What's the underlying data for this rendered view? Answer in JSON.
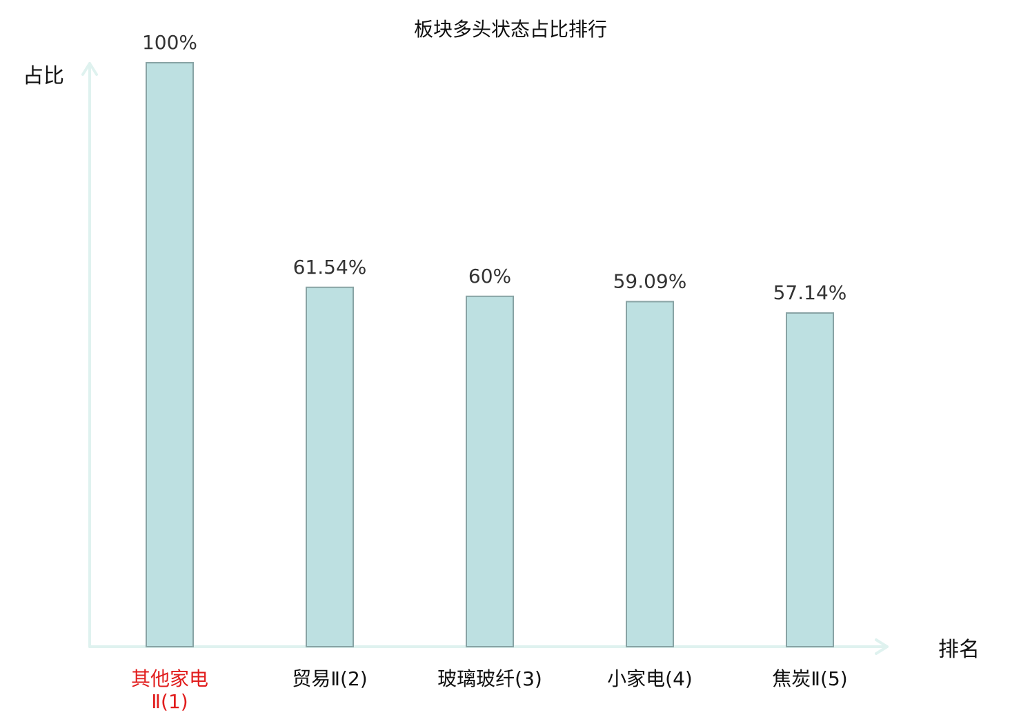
{
  "chart_data": {
    "type": "bar",
    "title": "板块多头状态占比排行",
    "ylabel": "占比",
    "xlabel": "排名",
    "categories": [
      [
        "其他家电",
        "Ⅱ(1)"
      ],
      [
        "贸易Ⅱ(2)"
      ],
      [
        "玻璃玻纤(3)"
      ],
      [
        "小家电(4)"
      ],
      [
        "焦炭Ⅱ(5)"
      ]
    ],
    "values": [
      100,
      61.54,
      60,
      59.09,
      57.14
    ],
    "value_labels": [
      "100%",
      "61.54%",
      "60%",
      "59.09%",
      "57.14%"
    ],
    "ylim": [
      0,
      100
    ],
    "highlight_index": 0,
    "grid": false,
    "legend": "none",
    "colors": {
      "bar_fill": "#bde0e1",
      "bar_stroke": "#88a3a4",
      "axis": "#dff2ef",
      "highlight_label": "#e11d1d",
      "normal_label": "#111111",
      "value_label": "#333333"
    }
  }
}
